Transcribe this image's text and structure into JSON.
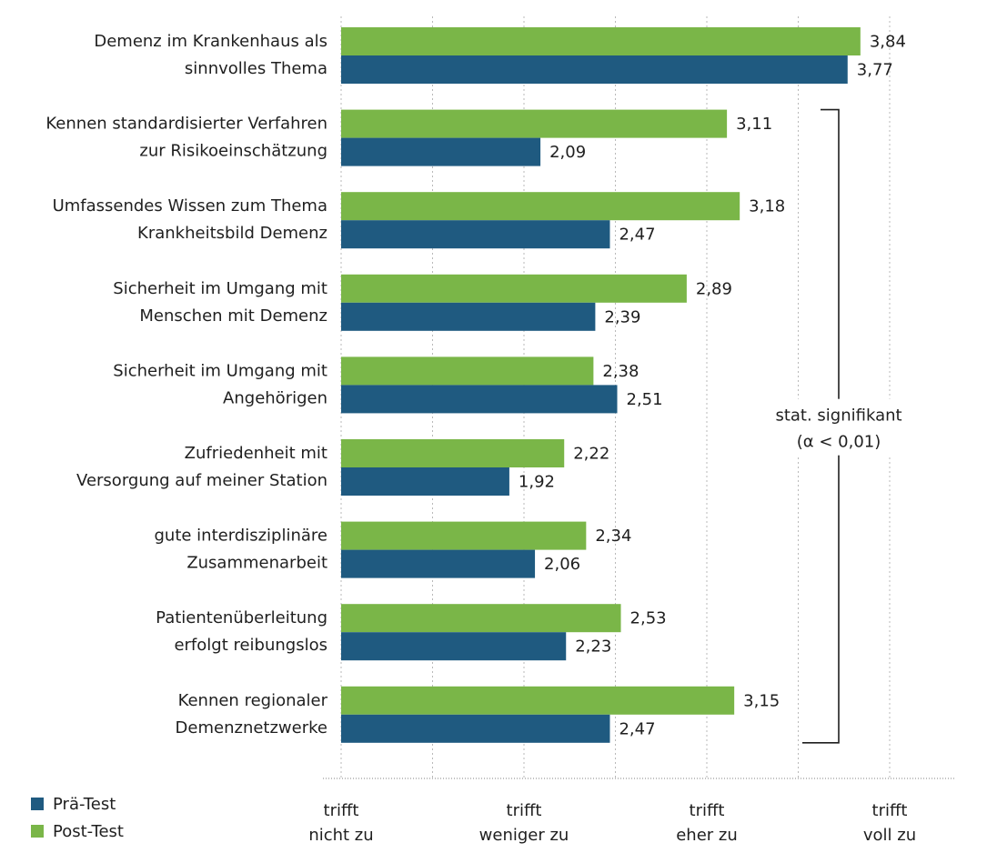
{
  "chart_data": {
    "type": "bar",
    "orientation": "horizontal",
    "categories": [
      [
        "Demenz im Krankenhaus als",
        "sinnvolles Thema"
      ],
      [
        "Kennen standardisierter Verfahren",
        "zur Risikoeinschätzung"
      ],
      [
        "Umfassendes Wissen zum Thema",
        "Krankheitsbild Demenz"
      ],
      [
        "Sicherheit im Umgang mit",
        "Menschen mit Demenz"
      ],
      [
        "Sicherheit im Umgang mit",
        "Angehörigen"
      ],
      [
        "Zufriedenheit mit",
        "Versorgung auf meiner Station"
      ],
      [
        "gute interdisziplinäre",
        "Zusammenarbeit"
      ],
      [
        "Patientenüberleitung",
        "erfolgt reibungslos"
      ],
      [
        "Kennen regionaler",
        "Demenznetzwerke"
      ]
    ],
    "series": [
      {
        "name": "Post-Test",
        "color": "#7ab648",
        "values": [
          3.84,
          3.11,
          3.18,
          2.89,
          2.38,
          2.22,
          2.34,
          2.53,
          3.15
        ],
        "labels": [
          "3,84",
          "3,11",
          "3,18",
          "2,89",
          "2,38",
          "2,22",
          "2,34",
          "2,53",
          "3,15"
        ]
      },
      {
        "name": "Prä-Test",
        "color": "#1f5a80",
        "values": [
          3.77,
          2.09,
          2.47,
          2.39,
          2.51,
          1.92,
          2.06,
          2.23,
          2.47
        ],
        "labels": [
          "3,77",
          "2,09",
          "2,47",
          "2,39",
          "2,51",
          "1,92",
          "2,06",
          "2,23",
          "2,47"
        ]
      }
    ],
    "xlim": [
      1,
      4
    ],
    "xticks": [
      {
        "value": 1,
        "lines": [
          "trifft",
          "nicht zu"
        ]
      },
      {
        "value": 2,
        "lines": [
          "trifft",
          "weniger zu"
        ]
      },
      {
        "value": 3,
        "lines": [
          "trifft",
          "eher zu"
        ]
      },
      {
        "value": 4,
        "lines": [
          "trifft",
          "voll zu"
        ]
      }
    ],
    "gridlines": [
      1,
      1.5,
      2,
      2.5,
      3,
      3.5,
      4
    ],
    "legend": {
      "position": "bottom-left",
      "items": [
        {
          "name": "Prä-Test",
          "color": "#1f5a80"
        },
        {
          "name": "Post-Test",
          "color": "#7ab648"
        }
      ]
    },
    "annotation": {
      "lines": [
        "stat. signifikant",
        "(α < 0,01)"
      ],
      "from_category": 1,
      "to_category": 8
    },
    "title": "",
    "xlabel": "",
    "ylabel": ""
  }
}
